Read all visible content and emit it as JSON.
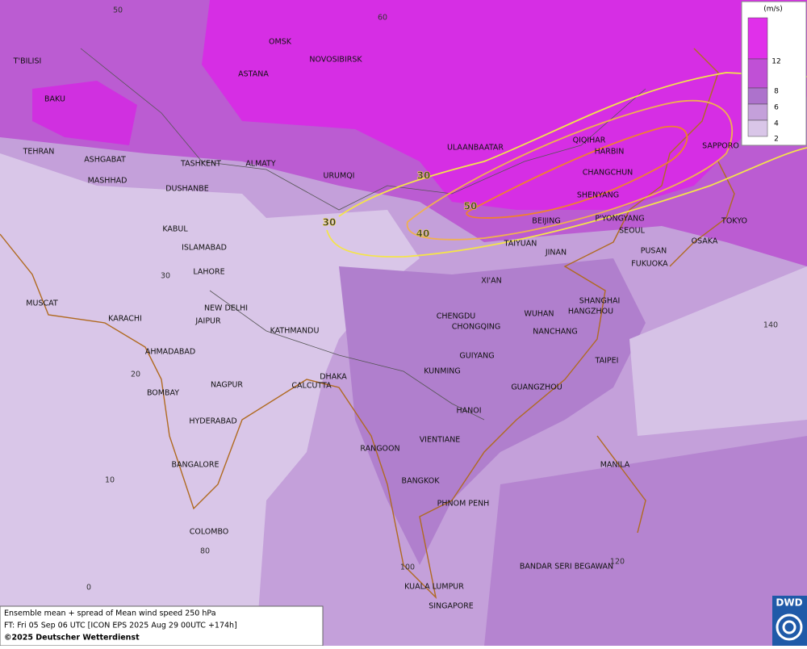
{
  "map": {
    "grid_labels": [
      50,
      60,
      30,
      20,
      10,
      0,
      80,
      100,
      120,
      140
    ],
    "cities": [
      "OMSK",
      "NOVOSIBIRSK",
      "ASTANA",
      "T'BILISI",
      "BAKU",
      "TEHRAN",
      "ASHGABAT",
      "MASHHAD",
      "TASHKENT",
      "ALMATY",
      "DUSHANBE",
      "URUMQI",
      "ULAANBAATAR",
      "QIQIHAR",
      "HARBIN",
      "CHANGCHUN",
      "SAPPORO",
      "SHENYANG",
      "BEIJING",
      "P'YONGYANG",
      "SEOUL",
      "TOKYO",
      "TAIYUAN",
      "OSAKA",
      "JINAN",
      "PUSAN",
      "FUKUOKA",
      "KABUL",
      "ISLAMABAD",
      "LAHORE",
      "XI'AN",
      "MUSCAT",
      "NEW DELHI",
      "SHANGHAI",
      "WUHAN",
      "HANGZHOU",
      "JAIPUR",
      "CHENGDU",
      "CHONGQING",
      "KARACHI",
      "KATHMANDU",
      "NANCHANG",
      "AHMADABAD",
      "GUIYANG",
      "TAIPEI",
      "KUNMING",
      "DHAKA",
      "BOMBAY",
      "NAGPUR",
      "CALCUTTA",
      "GUANGZHOU",
      "HANOI",
      "HYDERABAD",
      "RANGOON",
      "VIENTIANE",
      "MANILA",
      "BANGALORE",
      "BANGKOK",
      "PHNOM PENH",
      "COLOMBO",
      "BANDAR SERI BEGAWAN",
      "KUALA LUMPUR",
      "SINGAPORE"
    ],
    "contour_labels": [
      30,
      30,
      50,
      40
    ]
  },
  "legend": {
    "unit": "(m/s)",
    "labels": [
      12,
      8,
      6,
      4,
      2
    ]
  },
  "caption": {
    "lines": [
      "Ensemble mean + spread of Mean wind speed 250 hPa",
      "FT: Fri 05 Sep 06 UTC [ICON EPS 2025 Aug 29 00UTC +174h]",
      "©2025 Deutscher Wetterdienst"
    ]
  },
  "logo": "DWD"
}
